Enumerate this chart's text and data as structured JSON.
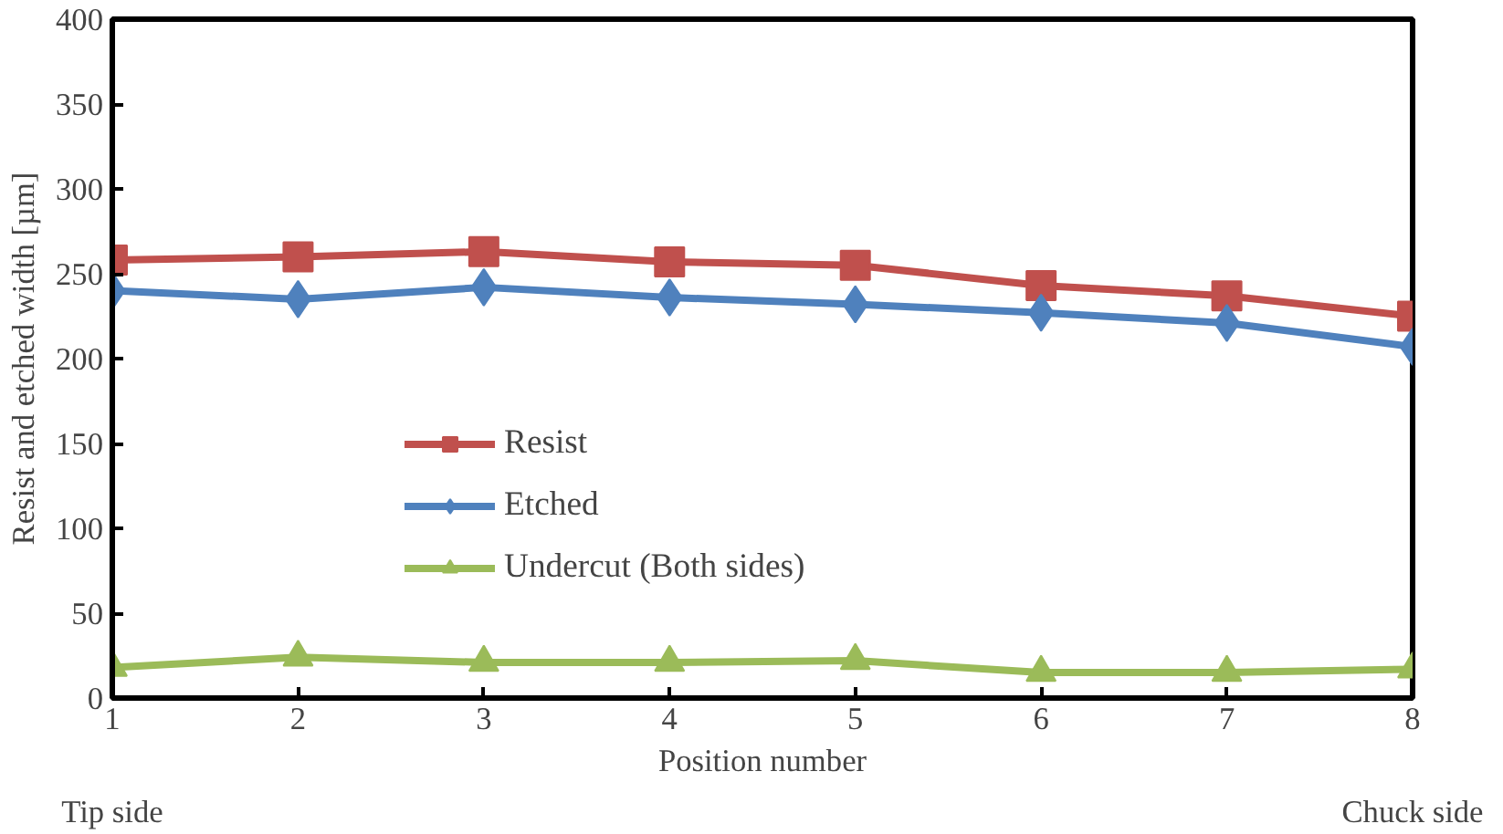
{
  "chart_data": {
    "type": "line",
    "ylabel": "Resist and etched width [µm]",
    "xlabel": "Position number",
    "x": [
      1,
      2,
      3,
      4,
      5,
      6,
      7,
      8
    ],
    "xlim": [
      1,
      8
    ],
    "xticks": [
      1,
      2,
      3,
      4,
      5,
      6,
      7,
      8
    ],
    "ylim": [
      0,
      400
    ],
    "yticks": [
      0,
      50,
      100,
      150,
      200,
      250,
      300,
      350,
      400
    ],
    "series": [
      {
        "name": "Resist",
        "color": "#c0504d",
        "marker": "square",
        "values": [
          258,
          260,
          263,
          257,
          255,
          243,
          237,
          225
        ]
      },
      {
        "name": "Etched",
        "color": "#4f81bd",
        "marker": "diamond",
        "values": [
          240,
          235,
          242,
          236,
          232,
          227,
          221,
          207
        ]
      },
      {
        "name": "Undercut (Both sides)",
        "color": "#9bbb59",
        "marker": "triangle",
        "values": [
          18,
          24,
          21,
          21,
          22,
          15,
          15,
          17
        ]
      }
    ],
    "annotations": [
      "Tip side",
      "Chuck side"
    ],
    "legend": "center left",
    "grid": false,
    "line_style": "solid"
  }
}
